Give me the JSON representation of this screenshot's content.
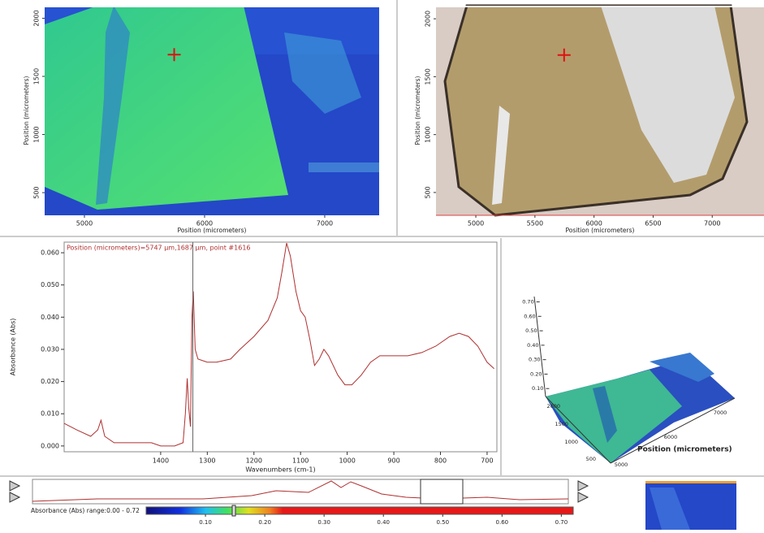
{
  "map_panel": {
    "x_label": "Position (micrometers)",
    "y_label": "Position (micrometers)",
    "xlim": [
      4669,
      7453
    ],
    "ylim": [
      305,
      2108
    ],
    "xticks": [
      5000,
      6000,
      7000
    ],
    "yticks": [
      500,
      1000,
      1500,
      2000
    ],
    "marker": [
      5747,
      1687
    ]
  },
  "image_panel": {
    "x_label": "Position (micrometers)",
    "y_label": "Position (micrometers)",
    "xlim": [
      4663,
      7438
    ],
    "ylim": [
      303,
      2113
    ],
    "xticks": [
      5000,
      5500,
      6000,
      6500,
      7000
    ],
    "yticks": [
      500,
      1000,
      1500,
      2000
    ],
    "marker": [
      5747,
      1687
    ]
  },
  "spectrum": {
    "type": "line",
    "annotation": "Position (micrometers)=5747 µm,1687 µm, point #1616",
    "x_label": "Wavenumbers (cm-1)",
    "y_label": "Absorbance (Abs)",
    "color": "#b03030",
    "xlim": [
      1607,
      679
    ],
    "ylim": [
      -0.0018,
      0.0633
    ],
    "xticks": [
      1400,
      1300,
      1200,
      1100,
      1000,
      900,
      800,
      700
    ],
    "yticks": [
      {
        "value": 0,
        "label": "0.000"
      },
      {
        "value": 0.01,
        "label": "0.010"
      },
      {
        "value": 0.02,
        "label": "0.020"
      },
      {
        "value": 0.03,
        "label": "0.030"
      },
      {
        "value": 0.04,
        "label": "0.040"
      },
      {
        "value": 0.05,
        "label": "0.050"
      },
      {
        "value": 0.06,
        "label": "0.060"
      }
    ],
    "cursor": 1331,
    "x": [
      1607,
      1580,
      1550,
      1535,
      1528,
      1520,
      1500,
      1450,
      1420,
      1400,
      1370,
      1352,
      1347,
      1343,
      1340,
      1336,
      1333,
      1330,
      1326,
      1320,
      1300,
      1280,
      1250,
      1230,
      1200,
      1170,
      1150,
      1140,
      1130,
      1122,
      1110,
      1100,
      1090,
      1080,
      1070,
      1060,
      1050,
      1040,
      1020,
      1005,
      990,
      970,
      950,
      930,
      900,
      870,
      840,
      810,
      780,
      760,
      740,
      720,
      700,
      685
    ],
    "values": [
      0.007,
      0.005,
      0.003,
      0.005,
      0.008,
      0.003,
      0.001,
      0.001,
      0.001,
      0,
      0,
      0.001,
      0.01,
      0.021,
      0.012,
      0.006,
      0.04,
      0.048,
      0.03,
      0.027,
      0.026,
      0.026,
      0.027,
      0.03,
      0.034,
      0.039,
      0.046,
      0.054,
      0.063,
      0.059,
      0.048,
      0.042,
      0.04,
      0.033,
      0.025,
      0.027,
      0.03,
      0.028,
      0.022,
      0.019,
      0.019,
      0.022,
      0.026,
      0.028,
      0.028,
      0.028,
      0.029,
      0.031,
      0.034,
      0.035,
      0.034,
      0.031,
      0.026,
      0.024
    ]
  },
  "surface_3d": {
    "axis_label": "Position (micrometers)",
    "zlim": [
      0,
      0.72
    ],
    "zticks": [
      {
        "value": 0.1,
        "label": "0.10"
      },
      {
        "value": 0.2,
        "label": "0.20"
      },
      {
        "value": 0.3,
        "label": "0.30"
      },
      {
        "value": 0.4,
        "label": "0.40"
      },
      {
        "value": 0.5,
        "label": "0.50"
      },
      {
        "value": 0.6,
        "label": "0.60"
      },
      {
        "value": 0.7,
        "label": "0.70"
      }
    ],
    "yticks": [
      2000,
      1500,
      1000,
      500
    ],
    "xticks": [
      5000,
      6000,
      7000
    ]
  },
  "colorbar": {
    "label": "Absorbance (Abs) range:0.00 - 0.72",
    "range": [
      0,
      0.72
    ],
    "ticks": [
      {
        "value": 0.1,
        "label": "0.10"
      },
      {
        "value": 0.2,
        "label": "0.20"
      },
      {
        "value": 0.3,
        "label": "0.30"
      },
      {
        "value": 0.4,
        "label": "0.40"
      },
      {
        "value": 0.5,
        "label": "0.50"
      },
      {
        "value": 0.6,
        "label": "0.60"
      },
      {
        "value": 0.7,
        "label": "0.70"
      }
    ]
  }
}
